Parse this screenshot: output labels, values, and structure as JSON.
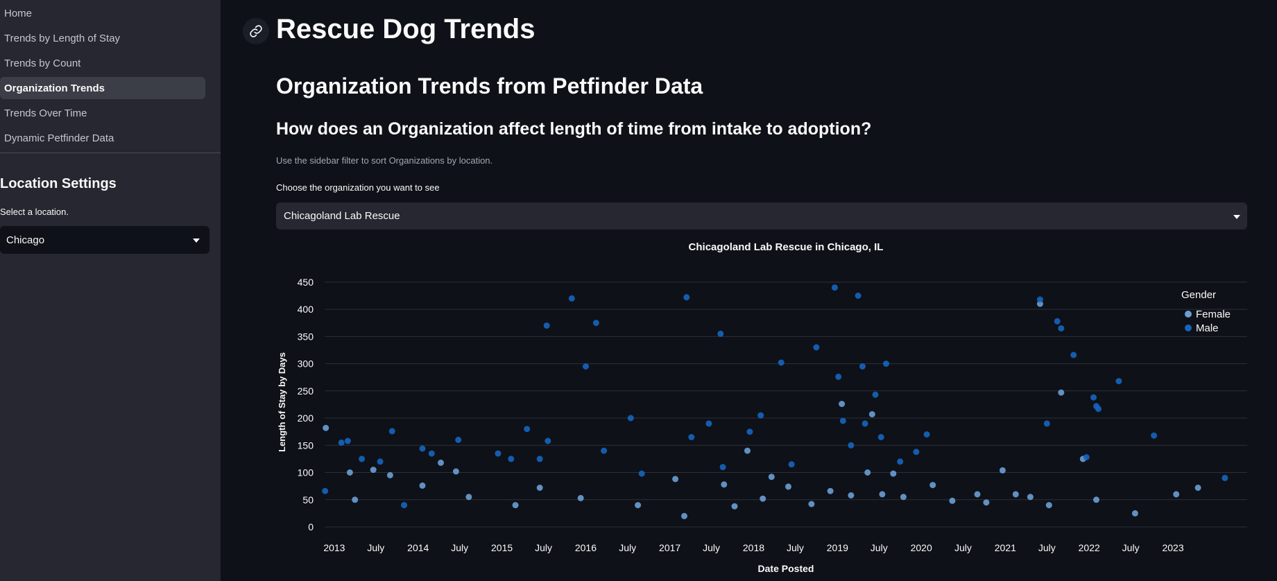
{
  "sidebar": {
    "nav": [
      {
        "label": "Home",
        "active": false
      },
      {
        "label": "Trends by Length of Stay",
        "active": false
      },
      {
        "label": "Trends by Count",
        "active": false
      },
      {
        "label": "Organization Trends",
        "active": true
      },
      {
        "label": "Trends Over Time",
        "active": false
      },
      {
        "label": "Dynamic Petfinder Data",
        "active": false
      }
    ],
    "location_heading": "Location Settings",
    "location_label": "Select a location.",
    "location_value": "Chicago"
  },
  "main": {
    "title": "Rescue Dog Trends",
    "subtitle": "Organization Trends from Petfinder Data",
    "question": "How does an Organization affect length of time from intake to adoption?",
    "caption": "Use the sidebar filter to sort Organizations by location.",
    "org_label": "Choose the organization you want to see",
    "org_value": "Chicagoland Lab Rescue"
  },
  "colors": {
    "female": "#6a9fd4",
    "male": "#1565c0",
    "light": "#8fc7ff"
  },
  "chart_data": {
    "type": "scatter",
    "title": "Chicagoland Lab Rescue in Chicago, IL",
    "xlabel": "Date Posted",
    "ylabel": "Length of Stay by Days",
    "xlim": [
      "2012-11-20",
      "2023-11-20"
    ],
    "ylim": [
      0,
      460
    ],
    "y_ticks": [
      0,
      50,
      100,
      150,
      200,
      250,
      300,
      350,
      400,
      450
    ],
    "x_ticks": [
      {
        "date": "2013-01-01",
        "label": "2013"
      },
      {
        "date": "2013-07-01",
        "label": "July"
      },
      {
        "date": "2014-01-01",
        "label": "2014"
      },
      {
        "date": "2014-07-01",
        "label": "July"
      },
      {
        "date": "2015-01-01",
        "label": "2015"
      },
      {
        "date": "2015-07-01",
        "label": "July"
      },
      {
        "date": "2016-01-01",
        "label": "2016"
      },
      {
        "date": "2016-07-01",
        "label": "July"
      },
      {
        "date": "2017-01-01",
        "label": "2017"
      },
      {
        "date": "2017-07-01",
        "label": "July"
      },
      {
        "date": "2018-01-01",
        "label": "2018"
      },
      {
        "date": "2018-07-01",
        "label": "July"
      },
      {
        "date": "2019-01-01",
        "label": "2019"
      },
      {
        "date": "2019-07-01",
        "label": "July"
      },
      {
        "date": "2020-01-01",
        "label": "2020"
      },
      {
        "date": "2020-07-01",
        "label": "July"
      },
      {
        "date": "2021-01-01",
        "label": "2021"
      },
      {
        "date": "2021-07-01",
        "label": "July"
      },
      {
        "date": "2022-01-01",
        "label": "2022"
      },
      {
        "date": "2022-07-01",
        "label": "July"
      },
      {
        "date": "2023-01-01",
        "label": "2023"
      }
    ],
    "grid": true,
    "legend": {
      "title": "Gender",
      "placement": "top-right"
    },
    "series": [
      {
        "name": "Female",
        "points": [
          [
            "2012-11-25",
            182
          ],
          [
            "2013-03-10",
            100
          ],
          [
            "2013-04-01",
            50
          ],
          [
            "2013-06-20",
            105
          ],
          [
            "2013-09-01",
            95
          ],
          [
            "2014-01-20",
            76
          ],
          [
            "2014-04-10",
            118
          ],
          [
            "2014-06-15",
            102
          ],
          [
            "2014-08-10",
            55
          ],
          [
            "2015-03-01",
            40
          ],
          [
            "2015-06-15",
            72
          ],
          [
            "2015-12-10",
            53
          ],
          [
            "2016-08-15",
            40
          ],
          [
            "2017-01-25",
            88
          ],
          [
            "2017-03-05",
            20
          ],
          [
            "2017-08-25",
            78
          ],
          [
            "2017-10-10",
            38
          ],
          [
            "2017-12-05",
            140
          ],
          [
            "2018-02-10",
            52
          ],
          [
            "2018-03-20",
            92
          ],
          [
            "2018-06-01",
            74
          ],
          [
            "2018-09-10",
            42
          ],
          [
            "2018-12-01",
            66
          ],
          [
            "2019-01-20",
            226
          ],
          [
            "2019-03-01",
            58
          ],
          [
            "2019-05-12",
            100
          ],
          [
            "2019-06-01",
            207
          ],
          [
            "2019-07-15",
            60
          ],
          [
            "2019-09-01",
            98
          ],
          [
            "2019-10-15",
            55
          ],
          [
            "2020-02-20",
            77
          ],
          [
            "2020-05-15",
            48
          ],
          [
            "2020-09-01",
            60
          ],
          [
            "2020-10-10",
            45
          ],
          [
            "2020-12-20",
            104
          ],
          [
            "2021-02-15",
            60
          ],
          [
            "2021-04-20",
            55
          ],
          [
            "2021-06-01",
            410
          ],
          [
            "2021-07-10",
            40
          ],
          [
            "2021-09-01",
            247
          ],
          [
            "2021-12-05",
            125
          ],
          [
            "2022-02-01",
            50
          ],
          [
            "2022-07-20",
            25
          ],
          [
            "2023-01-15",
            60
          ],
          [
            "2023-04-20",
            72
          ]
        ]
      },
      {
        "name": "Male",
        "points": [
          [
            "2012-11-22",
            66
          ],
          [
            "2013-02-01",
            155
          ],
          [
            "2013-03-01",
            158
          ],
          [
            "2013-05-01",
            125
          ],
          [
            "2013-07-20",
            120
          ],
          [
            "2013-09-10",
            176
          ],
          [
            "2013-11-01",
            40
          ],
          [
            "2014-01-20",
            144
          ],
          [
            "2014-03-01",
            135
          ],
          [
            "2014-06-25",
            160
          ],
          [
            "2014-12-15",
            135
          ],
          [
            "2015-02-10",
            125
          ],
          [
            "2015-04-20",
            180
          ],
          [
            "2015-06-15",
            125
          ],
          [
            "2015-07-15",
            370
          ],
          [
            "2015-07-20",
            158
          ],
          [
            "2015-11-01",
            420
          ],
          [
            "2016-01-01",
            295
          ],
          [
            "2016-02-15",
            375
          ],
          [
            "2016-03-20",
            140
          ],
          [
            "2016-07-15",
            200
          ],
          [
            "2016-09-01",
            98
          ],
          [
            "2017-03-15",
            422
          ],
          [
            "2017-04-05",
            165
          ],
          [
            "2017-06-20",
            190
          ],
          [
            "2017-08-10",
            355
          ],
          [
            "2017-08-20",
            110
          ],
          [
            "2017-12-15",
            175
          ],
          [
            "2018-02-01",
            205
          ],
          [
            "2018-05-01",
            302
          ],
          [
            "2018-06-15",
            115
          ],
          [
            "2018-10-01",
            330
          ],
          [
            "2018-12-20",
            440
          ],
          [
            "2019-01-05",
            276
          ],
          [
            "2019-01-25",
            195
          ],
          [
            "2019-03-01",
            150
          ],
          [
            "2019-04-01",
            425
          ],
          [
            "2019-04-20",
            295
          ],
          [
            "2019-05-01",
            190
          ],
          [
            "2019-06-15",
            243
          ],
          [
            "2019-07-10",
            165
          ],
          [
            "2019-08-01",
            300
          ],
          [
            "2019-10-01",
            120
          ],
          [
            "2019-12-10",
            138
          ],
          [
            "2020-01-25",
            170
          ],
          [
            "2021-06-01",
            418
          ],
          [
            "2021-07-01",
            190
          ],
          [
            "2021-08-15",
            378
          ],
          [
            "2021-09-01",
            365
          ],
          [
            "2021-10-25",
            316
          ],
          [
            "2021-12-20",
            128
          ],
          [
            "2022-01-20",
            238
          ],
          [
            "2022-02-01",
            222
          ],
          [
            "2022-02-10",
            217
          ],
          [
            "2022-05-10",
            268
          ],
          [
            "2022-10-10",
            168
          ],
          [
            "2023-08-15",
            90
          ]
        ]
      }
    ]
  }
}
